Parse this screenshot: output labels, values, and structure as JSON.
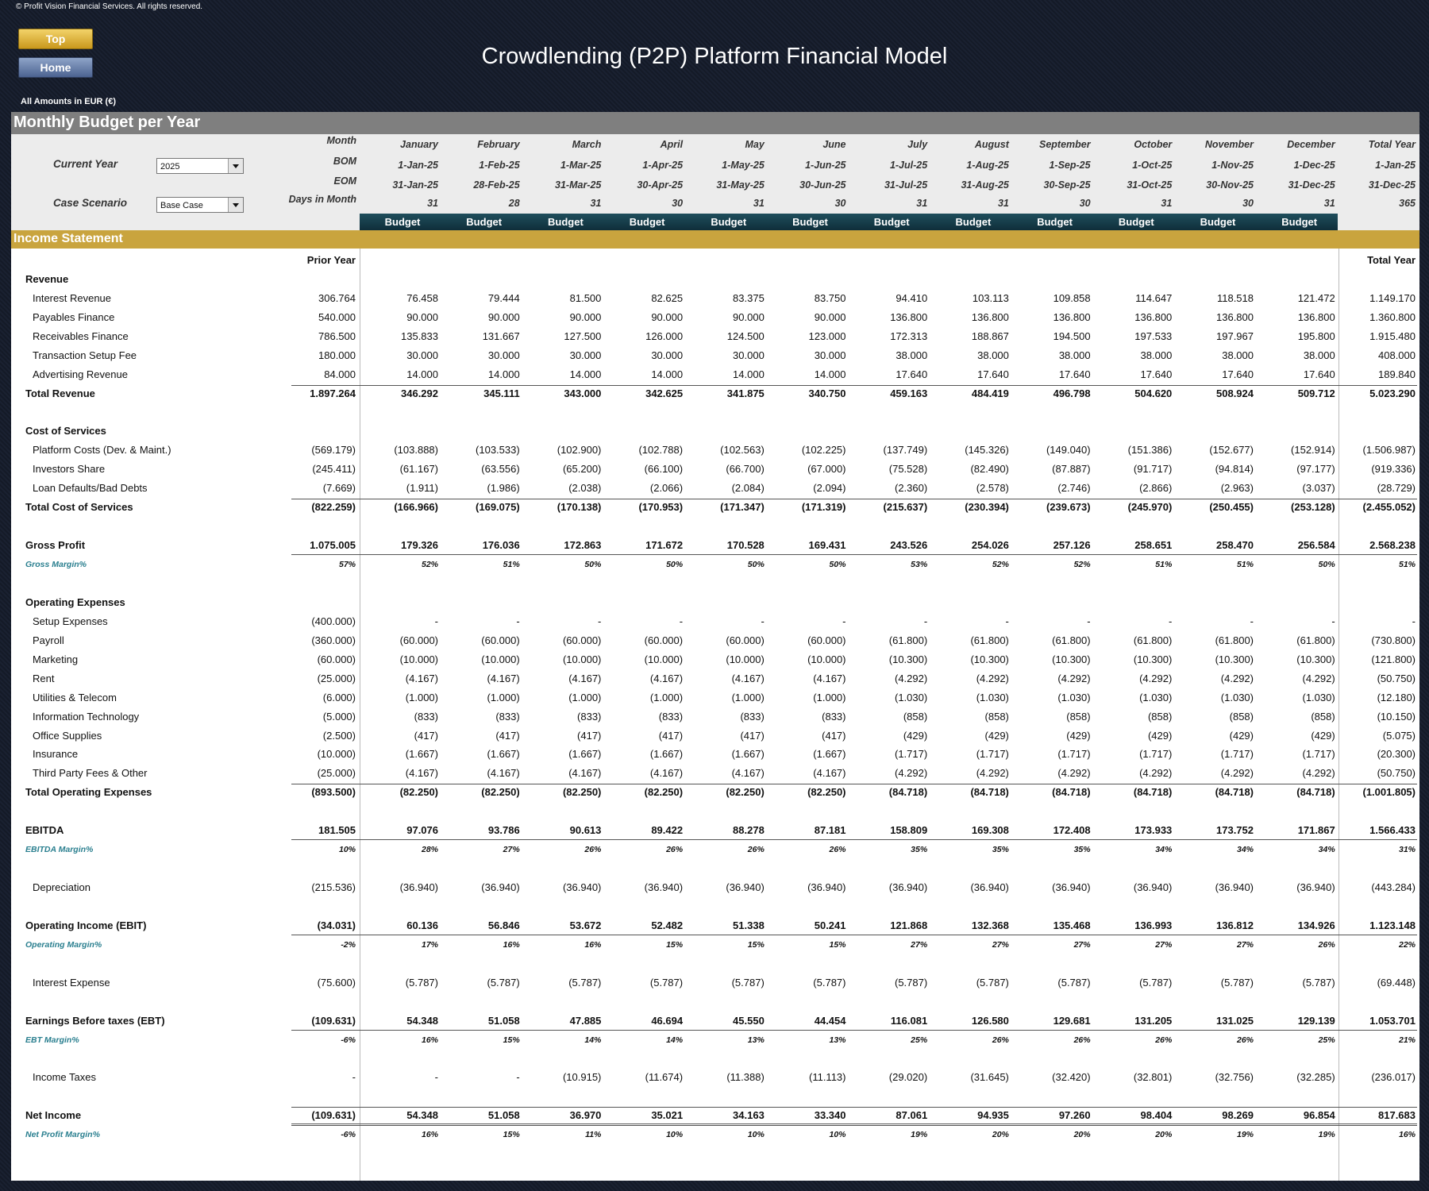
{
  "header": {
    "copyright": "© Profit Vision Financial Services. All rights reserved.",
    "buttons": [
      "Top",
      "Home"
    ],
    "title": "Crowdlending (P2P) Platform Financial Model",
    "amounts_note": "All Amounts in  EUR (€)"
  },
  "budget_panel": {
    "title": "Monthly Budget per Year",
    "controls": [
      {
        "label": "Current Year",
        "value": "2025"
      },
      {
        "label": "Case Scenario",
        "value": "Base Case"
      }
    ],
    "row_labels": [
      "Month",
      "BOM",
      "EOM",
      "Days in Month"
    ],
    "month": [
      "January",
      "February",
      "March",
      "April",
      "May",
      "June",
      "July",
      "August",
      "September",
      "October",
      "November",
      "December",
      "Total Year"
    ],
    "bom": [
      "1-Jan-25",
      "1-Feb-25",
      "1-Mar-25",
      "1-Apr-25",
      "1-May-25",
      "1-Jun-25",
      "1-Jul-25",
      "1-Aug-25",
      "1-Sep-25",
      "1-Oct-25",
      "1-Nov-25",
      "1-Dec-25",
      "1-Jan-25"
    ],
    "eom": [
      "31-Jan-25",
      "28-Feb-25",
      "31-Mar-25",
      "30-Apr-25",
      "31-May-25",
      "30-Jun-25",
      "31-Jul-25",
      "31-Aug-25",
      "30-Sep-25",
      "31-Oct-25",
      "30-Nov-25",
      "31-Dec-25",
      "31-Dec-25"
    ],
    "days": [
      31,
      28,
      31,
      30,
      31,
      30,
      31,
      31,
      30,
      31,
      30,
      31,
      365
    ],
    "budget": [
      "Budget",
      "Budget",
      "Budget",
      "Budget",
      "Budget",
      "Budget",
      "Budget",
      "Budget",
      "Budget",
      "Budget",
      "Budget",
      "Budget"
    ]
  },
  "income_statement": {
    "title": "Income Statement",
    "columns": [
      "Prior Year",
      "Total Year"
    ],
    "rows": [
      {
        "label": "Revenue"
      },
      {
        "label": "Interest Revenue",
        "values": [
          "306.764",
          "76.458",
          "79.444",
          "81.500",
          "82.625",
          "83.375",
          "83.750",
          "94.410",
          "103.113",
          "109.858",
          "114.647",
          "118.518",
          "121.472",
          "1.149.170"
        ]
      },
      {
        "label": "Payables Finance",
        "values": [
          "540.000",
          "90.000",
          "90.000",
          "90.000",
          "90.000",
          "90.000",
          "90.000",
          "136.800",
          "136.800",
          "136.800",
          "136.800",
          "136.800",
          "136.800",
          "1.360.800"
        ]
      },
      {
        "label": "Receivables Finance",
        "values": [
          "786.500",
          "135.833",
          "131.667",
          "127.500",
          "126.000",
          "124.500",
          "123.000",
          "172.313",
          "188.867",
          "194.500",
          "197.533",
          "197.967",
          "195.800",
          "1.915.480"
        ]
      },
      {
        "label": "Transaction Setup Fee",
        "values": [
          "180.000",
          "30.000",
          "30.000",
          "30.000",
          "30.000",
          "30.000",
          "30.000",
          "38.000",
          "38.000",
          "38.000",
          "38.000",
          "38.000",
          "38.000",
          "408.000"
        ]
      },
      {
        "label": "Advertising Revenue",
        "values": [
          "84.000",
          "14.000",
          "14.000",
          "14.000",
          "14.000",
          "14.000",
          "14.000",
          "17.640",
          "17.640",
          "17.640",
          "17.640",
          "17.640",
          "17.640",
          "189.840"
        ]
      },
      {
        "label": "Total Revenue",
        "values": [
          "1.897.264",
          "346.292",
          "345.111",
          "343.000",
          "342.625",
          "341.875",
          "340.750",
          "459.163",
          "484.419",
          "496.798",
          "504.620",
          "508.924",
          "509.712",
          "5.023.290"
        ]
      },
      {
        "label": "Cost of Services"
      },
      {
        "label": "Platform Costs (Dev. & Maint.)",
        "values": [
          "(569.179)",
          "(103.888)",
          "(103.533)",
          "(102.900)",
          "(102.788)",
          "(102.563)",
          "(102.225)",
          "(137.749)",
          "(145.326)",
          "(149.040)",
          "(151.386)",
          "(152.677)",
          "(152.914)",
          "(1.506.987)"
        ]
      },
      {
        "label": "Investors Share",
        "values": [
          "(245.411)",
          "(61.167)",
          "(63.556)",
          "(65.200)",
          "(66.100)",
          "(66.700)",
          "(67.000)",
          "(75.528)",
          "(82.490)",
          "(87.887)",
          "(91.717)",
          "(94.814)",
          "(97.177)",
          "(919.336)"
        ]
      },
      {
        "label": "Loan Defaults/Bad Debts",
        "values": [
          "(7.669)",
          "(1.911)",
          "(1.986)",
          "(2.038)",
          "(2.066)",
          "(2.084)",
          "(2.094)",
          "(2.360)",
          "(2.578)",
          "(2.746)",
          "(2.866)",
          "(2.963)",
          "(3.037)",
          "(28.729)"
        ]
      },
      {
        "label": "Total Cost of Services",
        "values": [
          "(822.259)",
          "(166.966)",
          "(169.075)",
          "(170.138)",
          "(170.953)",
          "(171.347)",
          "(171.319)",
          "(215.637)",
          "(230.394)",
          "(239.673)",
          "(245.970)",
          "(250.455)",
          "(253.128)",
          "(2.455.052)"
        ]
      },
      {
        "label": "Gross Profit",
        "values": [
          "1.075.005",
          "179.326",
          "176.036",
          "172.863",
          "171.672",
          "170.528",
          "169.431",
          "243.526",
          "254.026",
          "257.126",
          "258.651",
          "258.470",
          "256.584",
          "2.568.238"
        ]
      },
      {
        "label": "Gross Margin%",
        "values": [
          "57%",
          "52%",
          "51%",
          "50%",
          "50%",
          "50%",
          "50%",
          "53%",
          "52%",
          "52%",
          "51%",
          "51%",
          "50%",
          "51%"
        ]
      },
      {
        "label": "Operating Expenses"
      },
      {
        "label": "Setup Expenses",
        "values": [
          "(400.000)",
          "-",
          "-",
          "-",
          "-",
          "-",
          "-",
          "-",
          "-",
          "-",
          "-",
          "-",
          "-",
          "-"
        ]
      },
      {
        "label": "Payroll",
        "values": [
          "(360.000)",
          "(60.000)",
          "(60.000)",
          "(60.000)",
          "(60.000)",
          "(60.000)",
          "(60.000)",
          "(61.800)",
          "(61.800)",
          "(61.800)",
          "(61.800)",
          "(61.800)",
          "(61.800)",
          "(730.800)"
        ]
      },
      {
        "label": "Marketing",
        "values": [
          "(60.000)",
          "(10.000)",
          "(10.000)",
          "(10.000)",
          "(10.000)",
          "(10.000)",
          "(10.000)",
          "(10.300)",
          "(10.300)",
          "(10.300)",
          "(10.300)",
          "(10.300)",
          "(10.300)",
          "(121.800)"
        ]
      },
      {
        "label": "Rent",
        "values": [
          "(25.000)",
          "(4.167)",
          "(4.167)",
          "(4.167)",
          "(4.167)",
          "(4.167)",
          "(4.167)",
          "(4.292)",
          "(4.292)",
          "(4.292)",
          "(4.292)",
          "(4.292)",
          "(4.292)",
          "(50.750)"
        ]
      },
      {
        "label": "Utilities & Telecom",
        "values": [
          "(6.000)",
          "(1.000)",
          "(1.000)",
          "(1.000)",
          "(1.000)",
          "(1.000)",
          "(1.000)",
          "(1.030)",
          "(1.030)",
          "(1.030)",
          "(1.030)",
          "(1.030)",
          "(1.030)",
          "(12.180)"
        ]
      },
      {
        "label": "Information Technology",
        "values": [
          "(5.000)",
          "(833)",
          "(833)",
          "(833)",
          "(833)",
          "(833)",
          "(833)",
          "(858)",
          "(858)",
          "(858)",
          "(858)",
          "(858)",
          "(858)",
          "(10.150)"
        ]
      },
      {
        "label": "Office Supplies",
        "values": [
          "(2.500)",
          "(417)",
          "(417)",
          "(417)",
          "(417)",
          "(417)",
          "(417)",
          "(429)",
          "(429)",
          "(429)",
          "(429)",
          "(429)",
          "(429)",
          "(5.075)"
        ]
      },
      {
        "label": "Insurance",
        "values": [
          "(10.000)",
          "(1.667)",
          "(1.667)",
          "(1.667)",
          "(1.667)",
          "(1.667)",
          "(1.667)",
          "(1.717)",
          "(1.717)",
          "(1.717)",
          "(1.717)",
          "(1.717)",
          "(1.717)",
          "(20.300)"
        ]
      },
      {
        "label": "Third Party Fees & Other",
        "values": [
          "(25.000)",
          "(4.167)",
          "(4.167)",
          "(4.167)",
          "(4.167)",
          "(4.167)",
          "(4.167)",
          "(4.292)",
          "(4.292)",
          "(4.292)",
          "(4.292)",
          "(4.292)",
          "(4.292)",
          "(50.750)"
        ]
      },
      {
        "label": "Total Operating Expenses",
        "values": [
          "(893.500)",
          "(82.250)",
          "(82.250)",
          "(82.250)",
          "(82.250)",
          "(82.250)",
          "(82.250)",
          "(84.718)",
          "(84.718)",
          "(84.718)",
          "(84.718)",
          "(84.718)",
          "(84.718)",
          "(1.001.805)"
        ]
      },
      {
        "label": "EBITDA",
        "values": [
          "181.505",
          "97.076",
          "93.786",
          "90.613",
          "89.422",
          "88.278",
          "87.181",
          "158.809",
          "169.308",
          "172.408",
          "173.933",
          "173.752",
          "171.867",
          "1.566.433"
        ]
      },
      {
        "label": "EBITDA Margin%",
        "values": [
          "10%",
          "28%",
          "27%",
          "26%",
          "26%",
          "26%",
          "26%",
          "35%",
          "35%",
          "35%",
          "34%",
          "34%",
          "34%",
          "31%"
        ]
      },
      {
        "label": "Depreciation",
        "values": [
          "(215.536)",
          "(36.940)",
          "(36.940)",
          "(36.940)",
          "(36.940)",
          "(36.940)",
          "(36.940)",
          "(36.940)",
          "(36.940)",
          "(36.940)",
          "(36.940)",
          "(36.940)",
          "(36.940)",
          "(443.284)"
        ]
      },
      {
        "label": "Operating Income (EBIT)",
        "values": [
          "(34.031)",
          "60.136",
          "56.846",
          "53.672",
          "52.482",
          "51.338",
          "50.241",
          "121.868",
          "132.368",
          "135.468",
          "136.993",
          "136.812",
          "134.926",
          "1.123.148"
        ]
      },
      {
        "label": "Operating Margin%",
        "values": [
          "-2%",
          "17%",
          "16%",
          "16%",
          "15%",
          "15%",
          "15%",
          "27%",
          "27%",
          "27%",
          "27%",
          "27%",
          "26%",
          "22%"
        ]
      },
      {
        "label": "Interest Expense",
        "values": [
          "(75.600)",
          "(5.787)",
          "(5.787)",
          "(5.787)",
          "(5.787)",
          "(5.787)",
          "(5.787)",
          "(5.787)",
          "(5.787)",
          "(5.787)",
          "(5.787)",
          "(5.787)",
          "(5.787)",
          "(69.448)"
        ]
      },
      {
        "label": "Earnings Before taxes (EBT)",
        "values": [
          "(109.631)",
          "54.348",
          "51.058",
          "47.885",
          "46.694",
          "45.550",
          "44.454",
          "116.081",
          "126.580",
          "129.681",
          "131.205",
          "131.025",
          "129.139",
          "1.053.701"
        ]
      },
      {
        "label": "EBT Margin%",
        "values": [
          "-6%",
          "16%",
          "15%",
          "14%",
          "14%",
          "13%",
          "13%",
          "25%",
          "26%",
          "26%",
          "26%",
          "26%",
          "25%",
          "21%"
        ]
      },
      {
        "label": "Income Taxes",
        "values": [
          "-",
          "-",
          "-",
          "(10.915)",
          "(11.674)",
          "(11.388)",
          "(11.113)",
          "(29.020)",
          "(31.645)",
          "(32.420)",
          "(32.801)",
          "(32.756)",
          "(32.285)",
          "(236.017)"
        ]
      },
      {
        "label": "Net Income",
        "values": [
          "(109.631)",
          "54.348",
          "51.058",
          "36.970",
          "35.021",
          "34.163",
          "33.340",
          "87.061",
          "94.935",
          "97.260",
          "98.404",
          "98.269",
          "96.854",
          "817.683"
        ]
      },
      {
        "label": "Net Profit Margin%",
        "values": [
          "-6%",
          "16%",
          "15%",
          "11%",
          "10%",
          "10%",
          "10%",
          "19%",
          "20%",
          "20%",
          "20%",
          "19%",
          "19%",
          "16%"
        ]
      }
    ]
  }
}
